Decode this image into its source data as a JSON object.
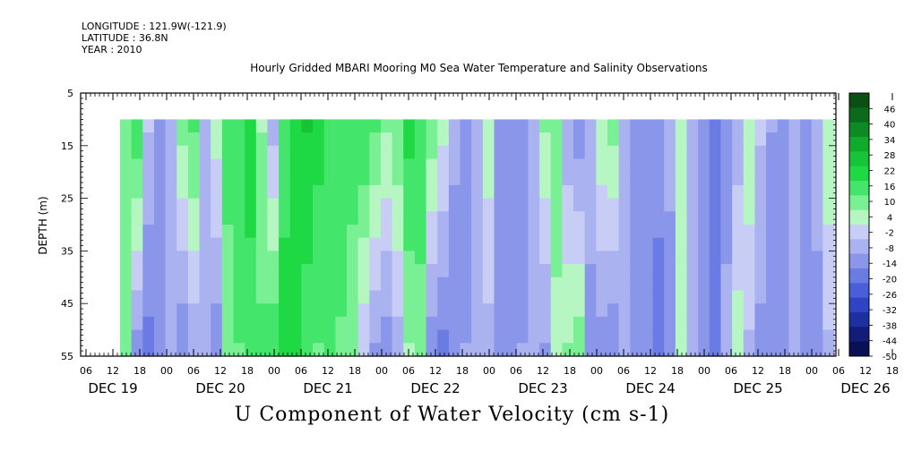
{
  "header": {
    "longitude": "LONGITUDE : 121.9W(-121.9)",
    "latitude": "LATITUDE : 36.8N",
    "year": "YEAR : 2010"
  },
  "chart_data": {
    "type": "heatmap",
    "title": "Hourly Gridded MBARI Mooring M0 Sea Water Temperature and Salinity Observations",
    "ylabel": "DEPTH (m)",
    "caption": "U Component of Water Velocity (cm s-1)",
    "y_ticks": [
      5,
      15,
      25,
      35,
      45,
      55
    ],
    "ylim": [
      5,
      55
    ],
    "y_reversed": true,
    "data_depth_range": [
      10,
      55
    ],
    "x_hour_ticks": [
      "06",
      "12",
      "18",
      "00",
      "06",
      "12",
      "18",
      "00",
      "06",
      "12",
      "18",
      "00",
      "06",
      "12",
      "18",
      "00",
      "06",
      "12",
      "18",
      "00",
      "06",
      "12",
      "18",
      "00",
      "06",
      "12",
      "18",
      "00",
      "06",
      "12",
      "18",
      "00",
      "06"
    ],
    "x_day_labels": [
      "DEC 19",
      "DEC 20",
      "DEC 21",
      "DEC 22",
      "DEC 23",
      "DEC 24",
      "DEC 25",
      "DEC 26"
    ],
    "day_label_tick_index": [
      1,
      5,
      9,
      13,
      17,
      21,
      25,
      29
    ],
    "data_start_tick_index": 1,
    "colorbar": {
      "labels": [
        "46",
        "40",
        "34",
        "28",
        "22",
        "16",
        "10",
        "4",
        "-2",
        "-8",
        "-14",
        "-20",
        "-26",
        "-32",
        "-38",
        "-44",
        "-50"
      ],
      "range": [
        -50,
        52
      ],
      "step": 3,
      "colors_high_to_low": [
        "#0a4f14",
        "#0b6a1b",
        "#0d8a24",
        "#10aa2c",
        "#15c437",
        "#1fd944",
        "#43e66a",
        "#7af094",
        "#b5f6c2",
        "#c8cdf6",
        "#aab2f0",
        "#8a96ea",
        "#6a7be4",
        "#4a5ed8",
        "#2f44c4",
        "#1e2fa0",
        "#111d78",
        "#0a1055"
      ]
    },
    "u_profile_hourly": {
      "start": "Dec 19 12:00",
      "step_hours": 3,
      "surface_10m": [
        12,
        18,
        -4,
        -12,
        -8,
        10,
        14,
        -6,
        4,
        16,
        18,
        20,
        6,
        -8,
        14,
        22,
        24,
        20,
        18,
        14,
        16,
        18,
        14,
        8,
        12,
        20,
        16,
        10,
        4,
        -8,
        -14,
        -10,
        6,
        -12,
        -16,
        -14,
        -6,
        8,
        12,
        -10,
        -14,
        -8,
        6,
        10,
        -6,
        -12,
        -16,
        -14,
        -8,
        4,
        -10,
        -16,
        -18,
        -14,
        -8,
        6,
        -4,
        -10,
        -14,
        -8,
        -12,
        -6,
        6
      ],
      "bottom_55m": [
        8,
        -14,
        -18,
        -12,
        -6,
        -16,
        -10,
        -6,
        -14,
        8,
        12,
        16,
        14,
        18,
        22,
        20,
        14,
        12,
        16,
        12,
        8,
        -4,
        -12,
        -14,
        -8,
        6,
        10,
        -14,
        -18,
        -16,
        -10,
        -6,
        -8,
        -14,
        -16,
        -10,
        -6,
        -12,
        4,
        8,
        10,
        -12,
        -14,
        -16,
        -6,
        -12,
        -16,
        -18,
        -14,
        6,
        -10,
        -14,
        -16,
        -8,
        4,
        -6,
        -12,
        -16,
        -14,
        -8,
        -12,
        -14,
        -6
      ]
    }
  }
}
